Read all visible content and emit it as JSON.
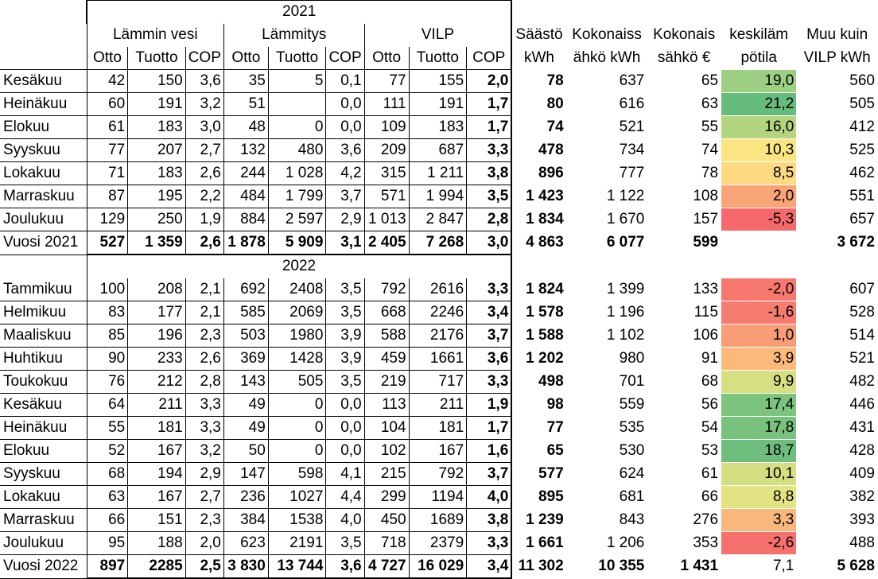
{
  "headers": {
    "year_2021": "2021",
    "year_2022": "2022",
    "group_water": "Lämmin vesi",
    "group_heating": "Lämmitys",
    "group_vilp": "VILP",
    "otto": "Otto",
    "tuotto": "Tuotto",
    "cop": "COP",
    "saasto_1": "Säästö",
    "saasto_2": "kWh",
    "kokonais_kwh_1": "Kokonaiss",
    "kokonais_kwh_2": "ähkö kWh",
    "kokonais_eur_1": "Kokonais",
    "kokonais_eur_2": "sähkö €",
    "temp_1": "keskiläm",
    "temp_2": "pötila",
    "muu_1": "Muu kuin",
    "muu_2": "VILP kWh"
  },
  "rows_2021": [
    {
      "month": "Kesäkuu",
      "vo": "42",
      "vt": "150",
      "vc": "3,6",
      "lo": "35",
      "lt": "5",
      "lc": "0,1",
      "po": "77",
      "pt": "155",
      "pc": "2,0",
      "s": "78",
      "kk": "637",
      "ke": "65",
      "t": "19,0",
      "tc": "#9dcf83",
      "m": "560"
    },
    {
      "month": "Heinäkuu",
      "vo": "60",
      "vt": "191",
      "vc": "3,2",
      "lo": "51",
      "lt": "",
      "lc": "0,0",
      "po": "111",
      "pt": "191",
      "pc": "1,7",
      "s": "80",
      "kk": "616",
      "ke": "63",
      "t": "21,2",
      "tc": "#66bc7c",
      "m": "505"
    },
    {
      "month": "Elokuu",
      "vo": "61",
      "vt": "183",
      "vc": "3,0",
      "lo": "48",
      "lt": "0",
      "lc": "0,0",
      "po": "109",
      "pt": "183",
      "pc": "1,7",
      "s": "74",
      "kk": "521",
      "ke": "55",
      "t": "16,0",
      "tc": "#b4d57f",
      "m": "412"
    },
    {
      "month": "Syyskuu",
      "vo": "77",
      "vt": "207",
      "vc": "2,7",
      "lo": "132",
      "lt": "480",
      "lc": "3,6",
      "po": "209",
      "pt": "687",
      "pc": "3,3",
      "s": "478",
      "kk": "734",
      "ke": "74",
      "t": "10,3",
      "tc": "#fbe583",
      "m": "525"
    },
    {
      "month": "Lokakuu",
      "vo": "71",
      "vt": "183",
      "vc": "2,6",
      "lo": "244",
      "lt": "1 028",
      "lc": "4,2",
      "po": "315",
      "pt": "1 211",
      "pc": "3,8",
      "s": "896",
      "kk": "777",
      "ke": "78",
      "t": "8,5",
      "tc": "#fdd982",
      "m": "462"
    },
    {
      "month": "Marraskuu",
      "vo": "87",
      "vt": "195",
      "vc": "2,2",
      "lo": "484",
      "lt": "1 799",
      "lc": "3,7",
      "po": "571",
      "pt": "1 994",
      "pc": "3,5",
      "s": "1 423",
      "kk": "1 122",
      "ke": "108",
      "t": "2,0",
      "tc": "#f9a477",
      "m": "551"
    },
    {
      "month": "Joulukuu",
      "vo": "129",
      "vt": "250",
      "vc": "1,9",
      "lo": "884",
      "lt": "2 597",
      "lc": "2,9",
      "po": "1 013",
      "pt": "2 847",
      "pc": "2,8",
      "s": "1 834",
      "kk": "1 670",
      "ke": "157",
      "t": "-5,3",
      "tc": "#f5696c",
      "m": "657"
    }
  ],
  "total_2021": {
    "month": "Vuosi 2021",
    "vo": "527",
    "vt": "1 359",
    "vc": "2,6",
    "lo": "1 878",
    "lt": "5 909",
    "lc": "3,1",
    "po": "2 405",
    "pt": "7 268",
    "pc": "3,0",
    "s": "4 863",
    "kk": "6 077",
    "ke": "599",
    "t": "",
    "m": "3 672"
  },
  "rows_2022": [
    {
      "month": "Tammikuu",
      "vo": "100",
      "vt": "208",
      "vc": "2,1",
      "lo": "692",
      "lt": "2408",
      "lc": "3,5",
      "po": "792",
      "pt": "2616",
      "pc": "3,3",
      "s": "1 824",
      "kk": "1 399",
      "ke": "133",
      "t": "-2,0",
      "tc": "#f6786e",
      "m": "607"
    },
    {
      "month": "Helmikuu",
      "vo": "83",
      "vt": "177",
      "vc": "2,1",
      "lo": "585",
      "lt": "2069",
      "lc": "3,5",
      "po": "668",
      "pt": "2246",
      "pc": "3,4",
      "s": "1 578",
      "kk": "1 196",
      "ke": "115",
      "t": "-1,6",
      "tc": "#f67c6f",
      "m": "528"
    },
    {
      "month": "Maaliskuu",
      "vo": "85",
      "vt": "196",
      "vc": "2,3",
      "lo": "503",
      "lt": "1980",
      "lc": "3,9",
      "po": "588",
      "pt": "2176",
      "pc": "3,7",
      "s": "1 588",
      "kk": "1 102",
      "ke": "106",
      "t": "1,0",
      "tc": "#f89d75",
      "m": "514"
    },
    {
      "month": "Huhtikuu",
      "vo": "90",
      "vt": "233",
      "vc": "2,6",
      "lo": "369",
      "lt": "1428",
      "lc": "3,9",
      "po": "459",
      "pt": "1661",
      "pc": "3,6",
      "s": "1 202",
      "kk": "980",
      "ke": "91",
      "t": "3,9",
      "tc": "#fbba7c",
      "m": "521"
    },
    {
      "month": "Toukokuu",
      "vo": "76",
      "vt": "212",
      "vc": "2,8",
      "lo": "143",
      "lt": "505",
      "lc": "3,5",
      "po": "219",
      "pt": "717",
      "pc": "3,3",
      "s": "498",
      "kk": "701",
      "ke": "68",
      "t": "9,9",
      "tc": "#d6e082",
      "m": "482"
    },
    {
      "month": "Kesäkuu",
      "vo": "64",
      "vt": "211",
      "vc": "3,3",
      "lo": "49",
      "lt": "0",
      "lc": "0,0",
      "po": "113",
      "pt": "211",
      "pc": "1,9",
      "s": "98",
      "kk": "559",
      "ke": "56",
      "t": "17,4",
      "tc": "#7dc47e",
      "m": "446"
    },
    {
      "month": "Heinäkuu",
      "vo": "55",
      "vt": "181",
      "vc": "3,3",
      "lo": "49",
      "lt": "0",
      "lc": "0,0",
      "po": "104",
      "pt": "181",
      "pc": "1,7",
      "s": "77",
      "kk": "535",
      "ke": "54",
      "t": "17,8",
      "tc": "#78c27d",
      "m": "431"
    },
    {
      "month": "Elokuu",
      "vo": "52",
      "vt": "167",
      "vc": "3,2",
      "lo": "50",
      "lt": "0",
      "lc": "0,0",
      "po": "102",
      "pt": "167",
      "pc": "1,6",
      "s": "65",
      "kk": "530",
      "ke": "53",
      "t": "18,7",
      "tc": "#6dbe7c",
      "m": "428"
    },
    {
      "month": "Syyskuu",
      "vo": "68",
      "vt": "194",
      "vc": "2,9",
      "lo": "147",
      "lt": "598",
      "lc": "4,1",
      "po": "215",
      "pt": "792",
      "pc": "3,7",
      "s": "577",
      "kk": "624",
      "ke": "61",
      "t": "10,1",
      "tc": "#d4df82",
      "m": "409"
    },
    {
      "month": "Lokakuu",
      "vo": "63",
      "vt": "167",
      "vc": "2,7",
      "lo": "236",
      "lt": "1027",
      "lc": "4,4",
      "po": "299",
      "pt": "1194",
      "pc": "4,0",
      "s": "895",
      "kk": "681",
      "ke": "66",
      "t": "8,8",
      "tc": "#e2e383",
      "m": "382"
    },
    {
      "month": "Marraskuu",
      "vo": "66",
      "vt": "151",
      "vc": "2,3",
      "lo": "384",
      "lt": "1538",
      "lc": "4,0",
      "po": "450",
      "pt": "1689",
      "pc": "3,8",
      "s": "1 239",
      "kk": "843",
      "ke": "276",
      "t": "3,3",
      "tc": "#fab77b",
      "m": "393"
    },
    {
      "month": "Joulukuu",
      "vo": "95",
      "vt": "188",
      "vc": "2,0",
      "lo": "623",
      "lt": "2191",
      "lc": "3,5",
      "po": "718",
      "pt": "2379",
      "pc": "3,3",
      "s": "1 661",
      "kk": "1 206",
      "ke": "353",
      "t": "-2,6",
      "tc": "#f5716d",
      "m": "488"
    }
  ],
  "total_2022": {
    "month": "Vuosi 2022",
    "vo": "897",
    "vt": "2285",
    "vc": "2,5",
    "lo": "3 830",
    "lt": "13 744",
    "lc": "3,6",
    "po": "4 727",
    "pt": "16 029",
    "pc": "3,4",
    "s": "11 302",
    "kk": "10 355",
    "ke": "1 431",
    "t": "7,1",
    "m": "5 628"
  }
}
